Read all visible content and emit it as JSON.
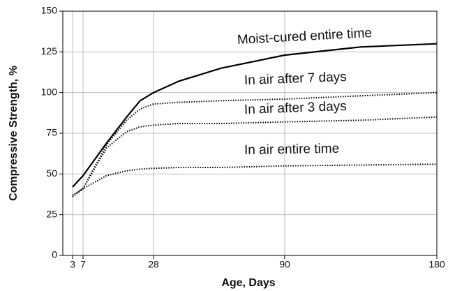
{
  "chart_data": {
    "type": "line",
    "xlabel": "Age, Days",
    "ylabel": "Compressive Strength, %",
    "xlim": [
      0,
      180
    ],
    "xticks": [
      3,
      7,
      28,
      90,
      180
    ],
    "ylim": [
      0,
      150
    ],
    "yticks": [
      0,
      25,
      50,
      75,
      100,
      125,
      150
    ],
    "grid": true,
    "x": [
      3,
      7,
      14,
      20,
      24,
      28,
      40,
      60,
      90,
      135,
      180
    ],
    "series": [
      {
        "name": "Moist-cured entire time",
        "color": "#000000",
        "style": "solid",
        "values": [
          42,
          49,
          69,
          85,
          95,
          100,
          107,
          115,
          123,
          128,
          130
        ]
      },
      {
        "name": "In air after 7 days",
        "color": "#000000",
        "style": "dotted",
        "values": [
          37,
          41,
          68,
          83,
          90,
          93,
          94,
          95,
          96,
          98,
          100
        ]
      },
      {
        "name": "In air after 3 days",
        "color": "#000000",
        "style": "dotted",
        "values": [
          37,
          41,
          66,
          76,
          79,
          80,
          81,
          81,
          82,
          83,
          85
        ]
      },
      {
        "name": "In air entire time",
        "color": "#000000",
        "style": "dotted",
        "values": [
          36,
          41,
          49,
          52,
          53,
          53.5,
          54,
          54,
          55,
          55.5,
          56
        ]
      }
    ]
  }
}
